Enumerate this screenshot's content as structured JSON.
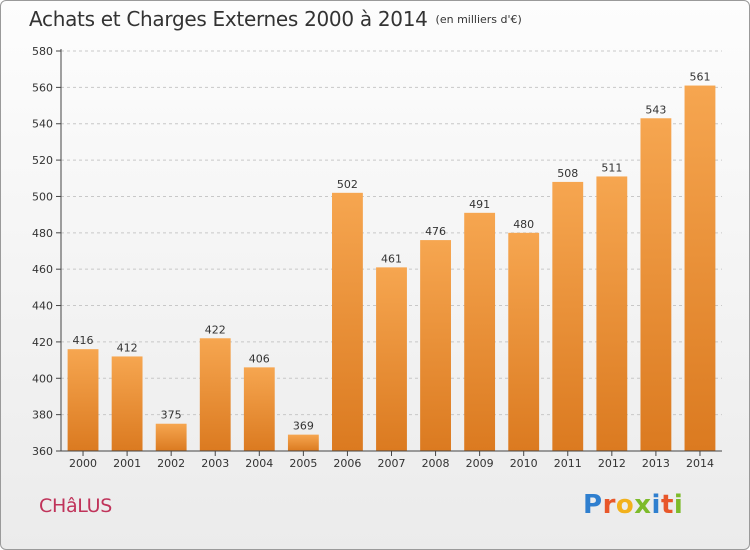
{
  "header": {
    "title": "Achats et Charges Externes 2000 à 2014",
    "unit": "(en milliers d'€)"
  },
  "footer": {
    "commune": "CHâLUS",
    "brand_letters": [
      {
        "char": "P",
        "color": "#2f7fcf"
      },
      {
        "char": "r",
        "color": "#e8572a"
      },
      {
        "char": "o",
        "color": "#f2b11c"
      },
      {
        "char": "x",
        "color": "#7dbb2a"
      },
      {
        "char": "i",
        "color": "#2f7fcf"
      },
      {
        "char": "t",
        "color": "#e8572a"
      },
      {
        "char": "i",
        "color": "#7dbb2a"
      }
    ]
  },
  "chart_data": {
    "type": "bar",
    "categories": [
      "2000",
      "2001",
      "2002",
      "2003",
      "2004",
      "2005",
      "2006",
      "2007",
      "2008",
      "2009",
      "2010",
      "2011",
      "2012",
      "2013",
      "2014"
    ],
    "values": [
      416,
      412,
      375,
      422,
      406,
      369,
      502,
      461,
      476,
      491,
      480,
      508,
      511,
      543,
      561
    ],
    "title": "Achats et Charges Externes 2000 à 2014",
    "xlabel": "",
    "ylabel": "",
    "ylim": [
      360,
      580
    ],
    "yticks": [
      360,
      380,
      400,
      420,
      440,
      460,
      480,
      500,
      520,
      540,
      560,
      580
    ],
    "grid": true,
    "data_labels": true,
    "colors": {
      "bar_top": "#f6a650",
      "bar_bottom": "#db7a20",
      "axis": "#444444",
      "grid": "#c8c8c8"
    }
  }
}
